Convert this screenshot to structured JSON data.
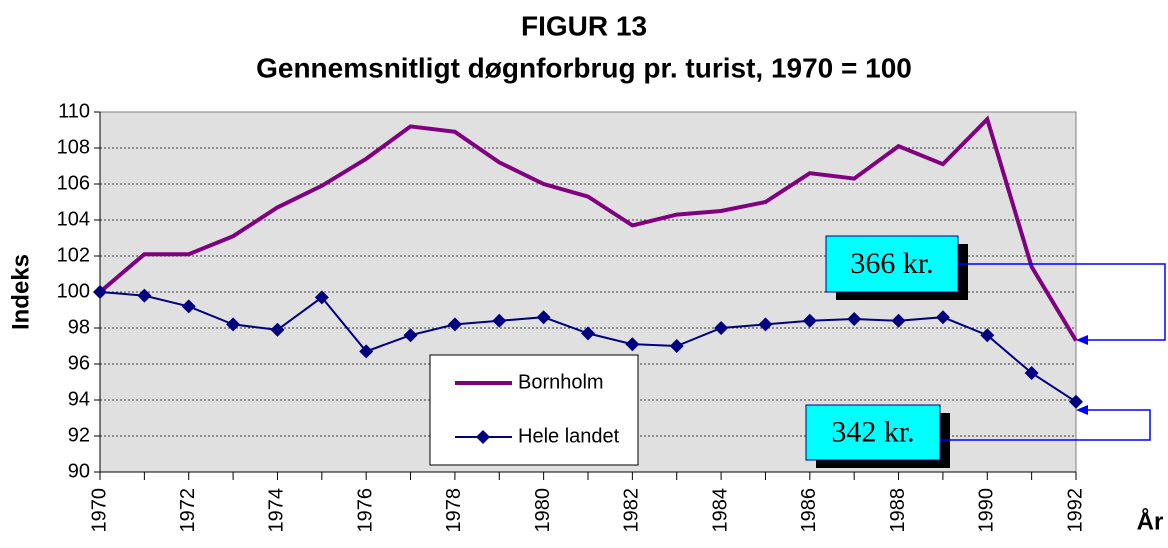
{
  "chart_data": {
    "type": "line",
    "title": "FIGUR 13",
    "subtitle": "Gennemsnitligt døgnforbrug pr. turist, 1970 = 100",
    "ylabel": "Indeks",
    "xlabel": "År",
    "x": [
      1970,
      1971,
      1972,
      1973,
      1974,
      1975,
      1976,
      1977,
      1978,
      1979,
      1980,
      1981,
      1982,
      1983,
      1984,
      1985,
      1986,
      1987,
      1988,
      1989,
      1990,
      1991,
      1992
    ],
    "series": [
      {
        "name": "Bornholm",
        "color": "#800080",
        "marker": "none",
        "values": [
          100,
          102.1,
          102.1,
          103.1,
          104.7,
          105.9,
          107.4,
          109.2,
          108.9,
          107.2,
          106.0,
          105.3,
          103.7,
          104.3,
          104.5,
          105.0,
          106.6,
          106.3,
          108.1,
          107.1,
          109.6,
          101.4,
          97.3
        ]
      },
      {
        "name": "Hele landet",
        "color": "#000080",
        "marker": "diamond",
        "values": [
          100,
          99.8,
          99.2,
          98.2,
          97.9,
          99.7,
          96.7,
          97.6,
          98.2,
          98.4,
          98.6,
          97.7,
          97.1,
          97.0,
          98.0,
          98.2,
          98.4,
          98.5,
          98.4,
          98.6,
          97.6,
          95.5,
          93.9
        ]
      }
    ],
    "xlim": [
      1970,
      1992
    ],
    "xticks": [
      1970,
      1972,
      1974,
      1976,
      1978,
      1980,
      1982,
      1984,
      1986,
      1988,
      1990,
      1992
    ],
    "ylim": [
      90,
      110
    ],
    "yticks": [
      90,
      92,
      94,
      96,
      98,
      100,
      102,
      104,
      106,
      108,
      110
    ],
    "grid": true,
    "annotations": [
      {
        "text": "366 kr."
      },
      {
        "text": "342 kr."
      }
    ]
  }
}
